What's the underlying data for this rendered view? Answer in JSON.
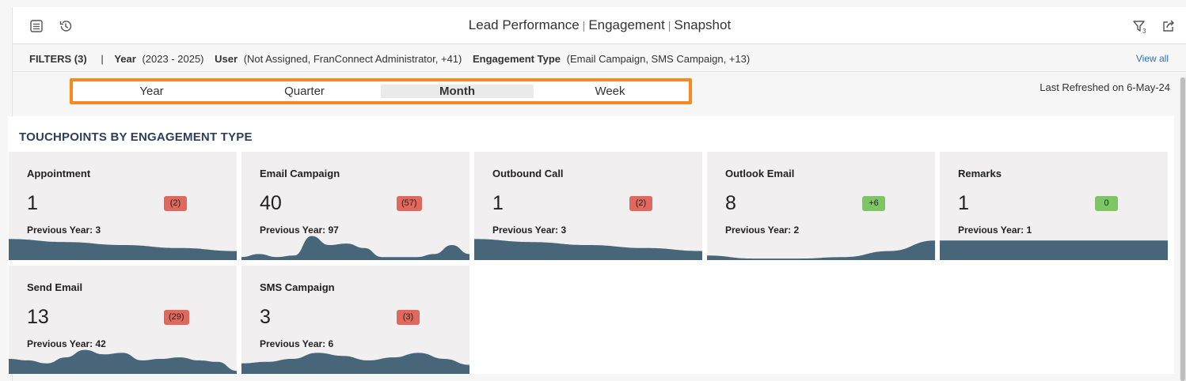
{
  "header": {
    "title_parts": [
      "Lead Performance",
      "Engagement",
      "Snapshot"
    ],
    "separator": "|",
    "filter_count_sub": "3",
    "icons": [
      "list-icon",
      "history-icon",
      "filter-icon",
      "share-icon"
    ]
  },
  "filters": {
    "label": "FILTERS (3)",
    "divider": "|",
    "items": [
      {
        "name": "Year",
        "value": "(2023 - 2025)"
      },
      {
        "name": "User",
        "value": "(Not Assigned, FranConnect Administrator, +41)"
      },
      {
        "name": "Engagement Type",
        "value": "(Email Campaign, SMS Campaign, +13)"
      }
    ],
    "view_all": "View all"
  },
  "period_selector": {
    "options": [
      "Year",
      "Quarter",
      "Month",
      "Week"
    ],
    "selected": "Month"
  },
  "last_refreshed": "Last Refreshed on 6-May-24",
  "section": {
    "title": "TOUCHPOINTS BY ENGAGEMENT TYPE"
  },
  "colors": {
    "accent_border": "#f6891f",
    "card_bg": "#f1efef",
    "spark_fill": "#48667a",
    "negative_badge": "#e0685c",
    "positive_badge": "#7cc764",
    "link": "#2a6fd6"
  },
  "cards": [
    {
      "name": "Appointment",
      "value": "1",
      "delta": "(2)",
      "delta_type": "neg",
      "previous": "Previous Year: 3",
      "spark": [
        0.7,
        0.6,
        0.5,
        0.4,
        0.3
      ]
    },
    {
      "name": "Email Campaign",
      "value": "40",
      "delta": "(57)",
      "delta_type": "neg",
      "previous": "Previous Year: 97",
      "spark": [
        0.1,
        0.2,
        0.1,
        0.15,
        0.8,
        0.5,
        0.55,
        0.4,
        0.1,
        0.1,
        0.1,
        0.2,
        0.5,
        0.2
      ]
    },
    {
      "name": "Outbound Call",
      "value": "1",
      "delta": "(2)",
      "delta_type": "neg",
      "previous": "Previous Year: 3",
      "spark": [
        0.7,
        0.6,
        0.5,
        0.4,
        0.3
      ]
    },
    {
      "name": "Outlook Email",
      "value": "8",
      "delta": "+6",
      "delta_type": "pos",
      "previous": "Previous Year: 2",
      "spark": [
        0.15,
        0.05,
        0.05,
        0.1,
        0.3,
        0.65
      ]
    },
    {
      "name": "Remarks",
      "value": "1",
      "delta": "0",
      "delta_type": "pos",
      "previous": "Previous Year: 1",
      "spark": [
        0.65,
        0.65,
        0.65,
        0.65
      ]
    },
    {
      "name": "Send Email",
      "value": "13",
      "delta": "(29)",
      "delta_type": "neg",
      "previous": "Previous Year: 42",
      "spark": [
        0.5,
        0.45,
        0.35,
        0.55,
        0.8,
        0.65,
        0.7,
        0.45,
        0.5,
        0.55,
        0.45,
        0.4,
        0.1
      ]
    },
    {
      "name": "SMS Campaign",
      "value": "3",
      "delta": "(3)",
      "delta_type": "neg",
      "previous": "Previous Year: 6",
      "spark": [
        0.35,
        0.4,
        0.5,
        0.7,
        0.6,
        0.45,
        0.55,
        0.7,
        0.5,
        0.3
      ]
    }
  ]
}
